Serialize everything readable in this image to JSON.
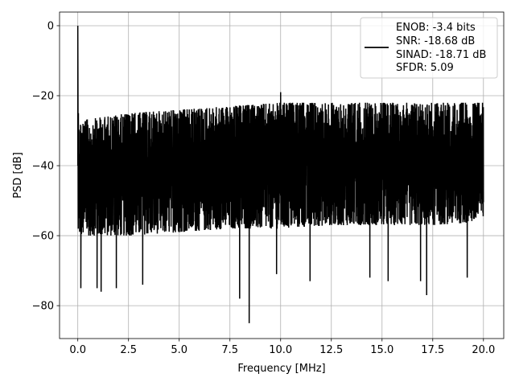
{
  "chart_data": {
    "type": "line",
    "title": "",
    "xlabel": "Frequency [MHz]",
    "ylabel": "PSD [dB]",
    "xlim": [
      -0.9,
      21.0
    ],
    "ylim": [
      -89.4,
      3.9
    ],
    "xticks": [
      0.0,
      2.5,
      5.0,
      7.5,
      10.0,
      12.5,
      15.0,
      17.5,
      20.0
    ],
    "xtick_labels": [
      "0.0",
      "2.5",
      "5.0",
      "7.5",
      "10.0",
      "12.5",
      "15.0",
      "17.5",
      "20.0"
    ],
    "yticks": [
      0,
      -20,
      -40,
      -60,
      -80
    ],
    "ytick_labels": [
      "0",
      "−20",
      "−40",
      "−60",
      "−80"
    ],
    "grid": true,
    "legend_position": "upper-right",
    "legend_lines": [
      "ENOB: -3.4 bits",
      "SNR: -18.68 dB",
      "SINAD: -18.71 dB",
      "SFDR: 5.09"
    ],
    "series": [
      {
        "color": "#000000",
        "description": "dense noise-floor spectrum from 0 to 20 MHz",
        "peak": {
          "x": 0.0,
          "y": 0.0
        },
        "noise_upper_envelope_db": [
          [
            0.2,
            -27
          ],
          [
            2.5,
            -25
          ],
          [
            5.0,
            -24
          ],
          [
            7.5,
            -23
          ],
          [
            10.0,
            -22
          ],
          [
            12.5,
            -22
          ],
          [
            15.0,
            -22
          ],
          [
            17.5,
            -22
          ],
          [
            20.0,
            -22
          ]
        ],
        "noise_lower_envelope_db": [
          [
            0.2,
            -60
          ],
          [
            2.5,
            -60
          ],
          [
            5.0,
            -59
          ],
          [
            7.5,
            -58
          ],
          [
            10.0,
            -58
          ],
          [
            12.5,
            -57
          ],
          [
            15.0,
            -57
          ],
          [
            17.5,
            -57
          ],
          [
            20.0,
            -56
          ]
        ],
        "notable_dips": [
          {
            "x": 0.15,
            "y": -75
          },
          {
            "x": 0.95,
            "y": -75
          },
          {
            "x": 1.15,
            "y": -76
          },
          {
            "x": 1.9,
            "y": -75
          },
          {
            "x": 3.2,
            "y": -74
          },
          {
            "x": 7.98,
            "y": -78
          },
          {
            "x": 8.45,
            "y": -85
          },
          {
            "x": 9.8,
            "y": -71
          },
          {
            "x": 11.45,
            "y": -73
          },
          {
            "x": 14.4,
            "y": -72
          },
          {
            "x": 15.3,
            "y": -73
          },
          {
            "x": 16.9,
            "y": -73
          },
          {
            "x": 17.2,
            "y": -77
          },
          {
            "x": 19.2,
            "y": -72
          }
        ],
        "notable_spikes": [
          {
            "x": 10.0,
            "y": -19
          }
        ]
      }
    ]
  }
}
